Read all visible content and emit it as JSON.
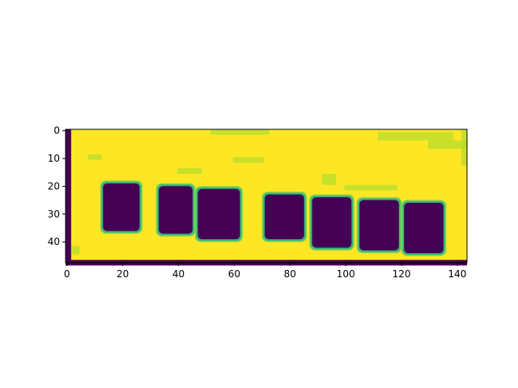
{
  "chart_data": {
    "type": "heatmap",
    "title": "",
    "xlabel": "",
    "ylabel": "",
    "image_shape": [
      48,
      144
    ],
    "colormap": "viridis",
    "colors": {
      "background": "#fde725",
      "blob": "#440154",
      "edge_teal": "#35b779",
      "edge_green": "#6ece58",
      "edge_light": "#b5de2b"
    },
    "xlim": [
      -0.5,
      143.5
    ],
    "ylim": [
      47.5,
      -0.5
    ],
    "x_ticks": [
      {
        "value": 0,
        "label": "0"
      },
      {
        "value": 20,
        "label": "20"
      },
      {
        "value": 40,
        "label": "40"
      },
      {
        "value": 60,
        "label": "60"
      },
      {
        "value": 80,
        "label": "80"
      },
      {
        "value": 100,
        "label": "100"
      },
      {
        "value": 120,
        "label": "120"
      },
      {
        "value": 140,
        "label": "140"
      }
    ],
    "y_ticks": [
      {
        "value": 0,
        "label": "0"
      },
      {
        "value": 10,
        "label": "10"
      },
      {
        "value": 20,
        "label": "20"
      },
      {
        "value": 30,
        "label": "30"
      },
      {
        "value": 40,
        "label": "40"
      }
    ],
    "background_value": "high",
    "blobs": [
      {
        "x0": 13,
        "x1": 26,
        "y0": 19,
        "y1": 36
      },
      {
        "x0": 33,
        "x1": 45,
        "y0": 20,
        "y1": 37
      },
      {
        "x0": 47,
        "x1": 62,
        "y0": 21,
        "y1": 39
      },
      {
        "x0": 71,
        "x1": 85,
        "y0": 23,
        "y1": 39
      },
      {
        "x0": 88,
        "x1": 102,
        "y0": 24,
        "y1": 42
      },
      {
        "x0": 105,
        "x1": 119,
        "y0": 25,
        "y1": 43
      },
      {
        "x0": 121,
        "x1": 135,
        "y0": 26,
        "y1": 44
      }
    ],
    "noise_specks": [
      {
        "x0": 52,
        "x1": 72,
        "y0": 0,
        "y1": 1
      },
      {
        "x0": 112,
        "x1": 138,
        "y0": 1,
        "y1": 3
      },
      {
        "x0": 130,
        "x1": 143,
        "y0": 4,
        "y1": 6
      },
      {
        "x0": 0,
        "x1": 1,
        "y0": 0,
        "y1": 47
      },
      {
        "x0": 142,
        "x1": 143,
        "y0": 0,
        "y1": 12
      },
      {
        "x0": 40,
        "x1": 48,
        "y0": 14,
        "y1": 15
      },
      {
        "x0": 92,
        "x1": 96,
        "y0": 16,
        "y1": 19
      },
      {
        "x0": 100,
        "x1": 118,
        "y0": 20,
        "y1": 21
      },
      {
        "x0": 0,
        "x1": 143,
        "y0": 47,
        "y1": 48
      },
      {
        "x0": 8,
        "x1": 12,
        "y0": 9,
        "y1": 10
      },
      {
        "x0": 60,
        "x1": 70,
        "y0": 10,
        "y1": 11
      },
      {
        "x0": 2,
        "x1": 4,
        "y0": 42,
        "y1": 44
      }
    ]
  }
}
